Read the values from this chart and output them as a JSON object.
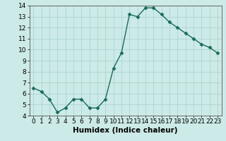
{
  "x": [
    0,
    1,
    2,
    3,
    4,
    5,
    6,
    7,
    8,
    9,
    10,
    11,
    12,
    13,
    14,
    15,
    16,
    17,
    18,
    19,
    20,
    21,
    22,
    23
  ],
  "y": [
    6.5,
    6.2,
    5.5,
    4.3,
    4.7,
    5.5,
    5.5,
    4.7,
    4.7,
    5.5,
    8.3,
    9.7,
    13.2,
    13.0,
    13.8,
    13.8,
    13.2,
    12.5,
    12.0,
    11.5,
    11.0,
    10.5,
    10.2,
    9.7
  ],
  "line_color": "#1a6b5a",
  "marker": "D",
  "marker_size": 2.5,
  "xlabel": "Humidex (Indice chaleur)",
  "ylim": [
    4,
    14
  ],
  "xlim": [
    -0.5,
    23.5
  ],
  "yticks": [
    4,
    5,
    6,
    7,
    8,
    9,
    10,
    11,
    12,
    13,
    14
  ],
  "xticks": [
    0,
    1,
    2,
    3,
    4,
    5,
    6,
    7,
    8,
    9,
    10,
    11,
    12,
    13,
    14,
    15,
    16,
    17,
    18,
    19,
    20,
    21,
    22,
    23
  ],
  "xtick_labels": [
    "0",
    "1",
    "2",
    "3",
    "4",
    "5",
    "6",
    "7",
    "8",
    "9",
    "10",
    "11",
    "12",
    "13",
    "14",
    "15",
    "16",
    "17",
    "18",
    "19",
    "20",
    "21",
    "22",
    "23"
  ],
  "background_color": "#cceae7",
  "grid_color": "#b0d8d4",
  "tick_fontsize": 6.5,
  "xlabel_fontsize": 7.5,
  "line_width": 1.0
}
